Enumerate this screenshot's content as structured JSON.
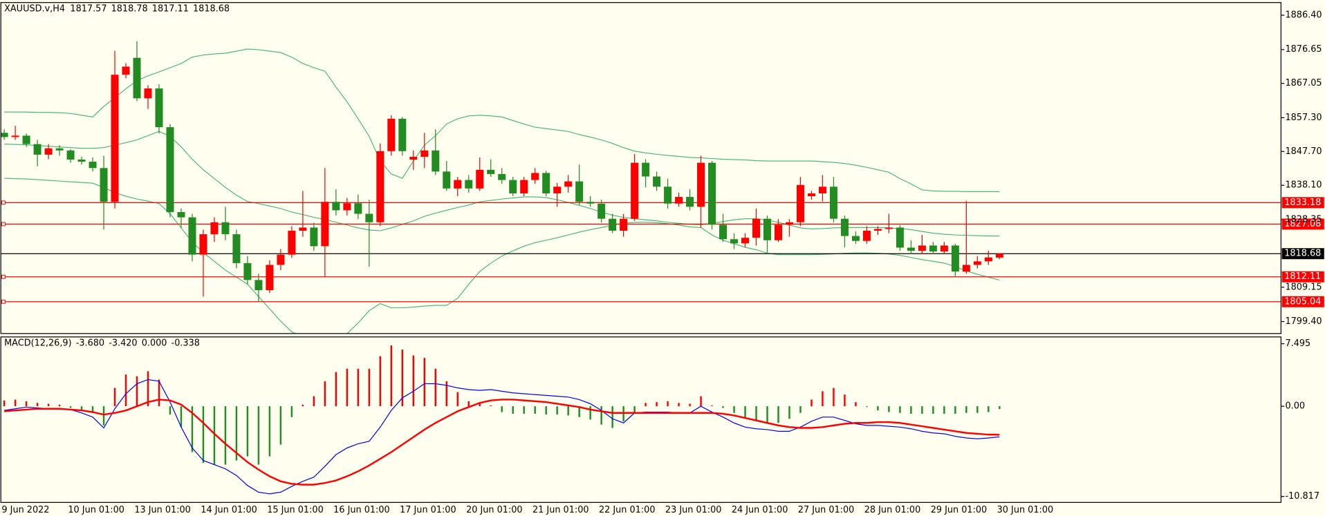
{
  "chart_data": [
    {
      "type": "candlestick",
      "title": "XAUUSD.v,H4",
      "categories": [
        "9 Jun 2022",
        null,
        null,
        null,
        null,
        null,
        "10 Jun 01:00",
        null,
        null,
        null,
        null,
        null,
        "13 Jun 01:00",
        null,
        null,
        null,
        null,
        null,
        "14 Jun 01:00",
        null,
        null,
        null,
        null,
        null,
        "15 Jun 01:00",
        null,
        null,
        null,
        null,
        null,
        "16 Jun 01:00",
        null,
        null,
        null,
        null,
        null,
        "17 Jun 01:00",
        null,
        null,
        null,
        null,
        null,
        "20 Jun 01:00",
        null,
        null,
        null,
        null,
        null,
        "21 Jun 01:00",
        null,
        null,
        null,
        null,
        null,
        "22 Jun 01:00",
        null,
        null,
        null,
        null,
        null,
        "23 Jun 01:00",
        null,
        null,
        null,
        null,
        null,
        "24 Jun 01:00",
        null,
        null,
        null,
        null,
        null,
        "27 Jun 01:00",
        null,
        null,
        null,
        null,
        null,
        "28 Jun 01:00",
        null,
        null,
        null,
        null,
        null,
        "29 Jun 01:00",
        null,
        null,
        null,
        null,
        null,
        "30 Jun 01:00"
      ],
      "open": [
        1853.0,
        1851.8,
        1852.2,
        1849.8,
        1846.8,
        1848.6,
        1848.0,
        1845.4,
        1844.8,
        1843.0,
        1833.4,
        1869.5,
        1874.3,
        1862.8,
        1865.6,
        1854.6,
        1830.5,
        1829.0,
        1818.4,
        1824.2,
        1827.6,
        1824.2,
        1816.0,
        1811.2,
        1808.3,
        1815.5,
        1818.4,
        1825.2,
        1826.1,
        1820.8,
        1833.4,
        1831.0,
        1833.0,
        1830.0,
        1827.6,
        1847.8,
        1857.0,
        1845.4,
        1846.2,
        1848.0,
        1842.0,
        1837.2,
        1839.6,
        1837.2,
        1842.5,
        1841.3,
        1839.6,
        1835.8,
        1839.6,
        1841.6,
        1835.8,
        1837.7,
        1839.2,
        1833.4,
        1832.9,
        1828.6,
        1825.2,
        1828.6,
        1844.5,
        1840.6,
        1837.7,
        1832.9,
        1834.8,
        1832.0,
        1844.5,
        1826.9,
        1822.8,
        1821.6,
        1823.2,
        1828.6,
        1822.5,
        1826.9,
        1827.6,
        1835.0,
        1835.8,
        1837.7,
        1828.6,
        1823.7,
        1822.3,
        1825.2,
        1825.7,
        1826.1,
        1820.4,
        1819.5,
        1821.0,
        1819.3,
        1821.0,
        1813.6,
        1815.5,
        1816.5,
        1817.57
      ],
      "high": [
        1854.0,
        1855.0,
        1852.8,
        1851.0,
        1849.8,
        1849.5,
        1848.4,
        1846.2,
        1846.0,
        1846.5,
        1876.3,
        1872.8,
        1879.0,
        1866.5,
        1866.8,
        1855.5,
        1831.5,
        1830.0,
        1825.5,
        1829.0,
        1832.0,
        1825.5,
        1818.0,
        1813.0,
        1816.8,
        1820.0,
        1826.5,
        1836.5,
        1827.5,
        1843.0,
        1837.0,
        1834.5,
        1835.5,
        1834.0,
        1850.0,
        1858.0,
        1857.5,
        1848.0,
        1853.0,
        1854.0,
        1845.0,
        1840.5,
        1841.0,
        1846.0,
        1845.5,
        1843.0,
        1840.5,
        1840.5,
        1843.0,
        1842.2,
        1838.8,
        1841.0,
        1844.0,
        1835.0,
        1834.0,
        1830.0,
        1830.0,
        1847.0,
        1845.5,
        1842.0,
        1840.0,
        1836.0,
        1837.0,
        1846.5,
        1845.0,
        1830.0,
        1824.5,
        1824.5,
        1831.5,
        1829.5,
        1828.5,
        1828.5,
        1840.5,
        1836.5,
        1841.0,
        1840.5,
        1829.5,
        1825.0,
        1826.5,
        1826.5,
        1830.0,
        1826.8,
        1822.5,
        1824.0,
        1822.0,
        1822.0,
        1821.5,
        1833.7,
        1818.0,
        1819.5,
        1818.78
      ],
      "low": [
        1851.0,
        1851.0,
        1849.0,
        1843.5,
        1845.5,
        1846.5,
        1844.5,
        1844.0,
        1842.0,
        1825.5,
        1831.5,
        1868.5,
        1862.0,
        1859.8,
        1852.8,
        1829.0,
        1826.0,
        1816.5,
        1806.5,
        1822.0,
        1822.5,
        1814.5,
        1810.0,
        1805.0,
        1807.5,
        1814.0,
        1817.5,
        1823.5,
        1819.5,
        1812.0,
        1829.5,
        1829.5,
        1828.5,
        1815.0,
        1826.5,
        1846.5,
        1846.5,
        1842.5,
        1843.0,
        1841.0,
        1836.5,
        1835.0,
        1836.0,
        1836.5,
        1840.5,
        1838.5,
        1835.0,
        1835.0,
        1838.5,
        1835.0,
        1832.0,
        1836.0,
        1832.5,
        1832.0,
        1827.5,
        1824.5,
        1823.5,
        1828.0,
        1837.5,
        1836.5,
        1831.5,
        1832.0,
        1831.0,
        1826.0,
        1825.5,
        1822.0,
        1820.0,
        1820.5,
        1821.0,
        1818.5,
        1822.0,
        1823.5,
        1826.5,
        1834.0,
        1833.5,
        1827.5,
        1820.5,
        1821.5,
        1821.5,
        1824.0,
        1824.5,
        1819.5,
        1818.5,
        1818.5,
        1818.5,
        1818.5,
        1812.0,
        1813.0,
        1814.5,
        1815.5,
        1817.11
      ],
      "close": [
        1851.8,
        1852.2,
        1849.8,
        1846.8,
        1848.6,
        1848.0,
        1845.4,
        1844.8,
        1843.0,
        1833.4,
        1869.5,
        1871.8,
        1862.8,
        1865.6,
        1854.6,
        1830.5,
        1829.0,
        1818.4,
        1824.2,
        1827.6,
        1824.2,
        1816.0,
        1811.2,
        1808.3,
        1815.5,
        1818.4,
        1825.2,
        1826.1,
        1820.8,
        1833.4,
        1831.0,
        1833.0,
        1830.0,
        1827.6,
        1847.8,
        1857.0,
        1847.8,
        1846.2,
        1848.0,
        1842.0,
        1837.2,
        1839.6,
        1837.2,
        1842.5,
        1841.3,
        1839.6,
        1835.8,
        1839.6,
        1841.6,
        1835.8,
        1837.7,
        1839.2,
        1833.4,
        1832.9,
        1828.6,
        1825.2,
        1828.6,
        1844.5,
        1840.6,
        1837.7,
        1832.9,
        1834.8,
        1832.0,
        1844.5,
        1826.9,
        1822.8,
        1821.6,
        1823.2,
        1828.6,
        1822.5,
        1826.9,
        1827.6,
        1838.2,
        1835.8,
        1837.7,
        1828.6,
        1823.7,
        1822.3,
        1825.2,
        1825.7,
        1826.1,
        1820.4,
        1819.5,
        1821.0,
        1819.3,
        1821.0,
        1813.6,
        1815.5,
        1816.5,
        1817.6,
        1818.68
      ],
      "up_color": "#ff0000",
      "down_color": "#228b22",
      "bands": {
        "color": "#3cb371",
        "upper": [
          1858.9,
          1858.9,
          1858.9,
          1858.8,
          1858.8,
          1858.7,
          1858.5,
          1858.0,
          1857.5,
          1860.5,
          1863.0,
          1865.5,
          1867.8,
          1869.2,
          1870.3,
          1871.5,
          1872.7,
          1874.5,
          1875.1,
          1875.4,
          1875.6,
          1876.2,
          1876.8,
          1876.6,
          1876.2,
          1875.8,
          1874.5,
          1872.7,
          1871.5,
          1870.5,
          1866.0,
          1861.8,
          1857.0,
          1852.0,
          1845.0,
          1841.3,
          1840.1,
          1845.0,
          1849.5,
          1852.2,
          1855.5,
          1857.0,
          1857.8,
          1858.0,
          1857.8,
          1857.5,
          1856.5,
          1855.5,
          1854.6,
          1854.2,
          1853.8,
          1853.4,
          1852.5,
          1851.8,
          1851.0,
          1850.0,
          1848.8,
          1847.8,
          1847.3,
          1846.9,
          1846.6,
          1846.3,
          1846.0,
          1845.9,
          1845.7,
          1845.5,
          1845.4,
          1845.3,
          1845.1,
          1845.0,
          1845.0,
          1845.0,
          1845.0,
          1845.0,
          1844.8,
          1844.6,
          1844.3,
          1843.8,
          1843.2,
          1842.5,
          1841.8,
          1840.0,
          1838.5,
          1836.8,
          1836.5,
          1836.4,
          1836.4,
          1836.3,
          1836.3,
          1836.3,
          1836.3
        ],
        "middle": [
          1849.8,
          1849.7,
          1849.6,
          1849.4,
          1849.2,
          1849.0,
          1848.8,
          1848.6,
          1848.6,
          1848.8,
          1849.5,
          1850.2,
          1851.0,
          1852.2,
          1853.4,
          1852.0,
          1849.0,
          1845.5,
          1842.5,
          1840.0,
          1837.5,
          1835.3,
          1833.5,
          1832.9,
          1832.2,
          1831.5,
          1830.5,
          1829.8,
          1829.0,
          1828.4,
          1827.6,
          1826.8,
          1826.0,
          1825.4,
          1825.2,
          1826.0,
          1827.0,
          1828.0,
          1829.3,
          1830.2,
          1831.0,
          1831.8,
          1832.5,
          1833.4,
          1833.8,
          1834.2,
          1834.5,
          1834.8,
          1834.8,
          1834.6,
          1834.0,
          1833.2,
          1832.4,
          1831.5,
          1830.5,
          1829.6,
          1829.0,
          1828.6,
          1828.3,
          1828.0,
          1827.6,
          1827.3,
          1827.0,
          1826.9,
          1827.3,
          1827.8,
          1828.3,
          1828.6,
          1828.6,
          1828.2,
          1827.6,
          1826.8,
          1826.0,
          1825.7,
          1825.8,
          1826.0,
          1826.1,
          1826.1,
          1826.1,
          1826.1,
          1826.0,
          1825.8,
          1825.5,
          1825.0,
          1824.5,
          1824.2,
          1824.0,
          1823.9,
          1823.8,
          1823.7,
          1823.7
        ],
        "lower": [
          1840.1,
          1840.0,
          1839.9,
          1839.7,
          1839.5,
          1839.3,
          1839.1,
          1838.9,
          1838.7,
          1837.5,
          1836.0,
          1835.0,
          1834.2,
          1833.6,
          1832.9,
          1830.0,
          1826.0,
          1822.0,
          1819.0,
          1816.5,
          1814.0,
          1812.0,
          1810.0,
          1806.5,
          1803.0,
          1799.5,
          1796.5,
          1795.0,
          1794.3,
          1794.0,
          1794.3,
          1796.0,
          1799.0,
          1802.5,
          1804.5,
          1803.3,
          1803.3,
          1803.5,
          1803.8,
          1804.0,
          1804.0,
          1806.0,
          1810.0,
          1813.6,
          1816.0,
          1818.0,
          1819.5,
          1820.8,
          1821.8,
          1822.5,
          1823.2,
          1824.0,
          1824.8,
          1825.5,
          1826.1,
          1826.8,
          1827.3,
          1827.6,
          1827.6,
          1827.5,
          1827.2,
          1826.8,
          1826.3,
          1826.1,
          1824.0,
          1822.5,
          1821.5,
          1820.5,
          1819.8,
          1818.8,
          1818.4,
          1818.4,
          1818.4,
          1818.4,
          1818.5,
          1818.6,
          1818.8,
          1818.9,
          1818.9,
          1818.8,
          1818.6,
          1818.2,
          1817.6,
          1817.0,
          1816.5,
          1816.0,
          1815.0,
          1813.8,
          1812.8,
          1812.0,
          1811.2
        ]
      },
      "levels": [
        1833.18,
        1827.08,
        1812.11,
        1805.04
      ],
      "level_color": "#ff0000",
      "price_line_color": "#000000",
      "ylim": [
        1796.0,
        1890.0
      ],
      "yticks": [
        {
          "value": 1886.4,
          "label": "1886.40"
        },
        1876.65,
        1867.05,
        {
          "value": 1857.3,
          "label": "1857.30"
        },
        {
          "value": 1847.7,
          "label": "1847.70"
        },
        {
          "value": 1838.1,
          "label": "1838.10"
        },
        1828.35,
        1809.15,
        {
          "value": 1799.4,
          "label": "1799.40"
        }
      ]
    },
    {
      "type": "macd",
      "title": "MACD(12,26,9)",
      "legend_values": [
        "-3.680",
        "-3.420",
        "0.000",
        "-0.338"
      ],
      "up_color": "#ff0000",
      "down_color": "#228b22",
      "main_color": "#0000ff",
      "signal_color": "#ff0000",
      "histogram": [
        0.7,
        0.8,
        0.6,
        0.4,
        0.3,
        0.2,
        -0.2,
        -0.5,
        -0.8,
        -2.3,
        2.2,
        3.8,
        3.6,
        4.2,
        3.2,
        -1.0,
        -2.5,
        -5.5,
        -6.8,
        -7.0,
        -7.0,
        -6.5,
        -6.0,
        -7.0,
        -6.0,
        -4.6,
        -1.3,
        0.2,
        1.2,
        3.0,
        4.1,
        4.5,
        4.5,
        4.5,
        6.0,
        7.3,
        6.8,
        6.1,
        5.8,
        4.5,
        3.0,
        1.7,
        0.6,
        0.3,
        0.1,
        -0.7,
        -0.9,
        -0.9,
        -0.9,
        -1.0,
        -1.0,
        -1.1,
        -1.3,
        -1.6,
        -2.2,
        -2.6,
        -1.8,
        -0.8,
        0.4,
        0.5,
        0.6,
        0.4,
        0.3,
        1.2,
        0.1,
        -0.2,
        -0.8,
        -1.5,
        -1.8,
        -2.0,
        -2.0,
        -1.5,
        -0.8,
        0.8,
        1.8,
        2.2,
        1.4,
        0.5,
        -0.1,
        -0.5,
        -0.7,
        -0.8,
        -0.9,
        -0.9,
        -0.9,
        -0.9,
        -0.9,
        -0.8,
        -0.8,
        -0.7,
        -0.338
      ],
      "main": [
        -0.5,
        -0.3,
        -0.1,
        -0.2,
        -0.3,
        -0.3,
        -0.4,
        -0.8,
        -1.3,
        -2.6,
        -0.3,
        1.5,
        2.7,
        3.2,
        3.0,
        0.5,
        -2.5,
        -5.0,
        -6.5,
        -7.0,
        -7.5,
        -8.3,
        -9.5,
        -10.3,
        -10.5,
        -10.3,
        -9.6,
        -9.0,
        -8.5,
        -7.2,
        -5.8,
        -5.0,
        -4.5,
        -4.2,
        -2.5,
        -0.5,
        1.0,
        1.8,
        2.7,
        2.7,
        2.5,
        2.2,
        2.0,
        1.9,
        2.0,
        1.8,
        1.6,
        1.5,
        1.4,
        1.3,
        1.2,
        1.1,
        0.8,
        0.3,
        -0.5,
        -1.5,
        -2.0,
        -0.8,
        -0.7,
        -0.7,
        -0.7,
        -0.8,
        -0.8,
        0.0,
        -0.7,
        -1.3,
        -2.0,
        -2.5,
        -2.7,
        -2.8,
        -3.0,
        -3.0,
        -2.5,
        -1.8,
        -1.3,
        -1.3,
        -1.7,
        -2.1,
        -2.3,
        -2.3,
        -2.4,
        -2.5,
        -2.7,
        -3.0,
        -3.2,
        -3.3,
        -3.6,
        -3.8,
        -3.9,
        -3.8,
        -3.68
      ],
      "signal": [
        -0.6,
        -0.5,
        -0.4,
        -0.3,
        -0.3,
        -0.3,
        -0.4,
        -0.5,
        -0.7,
        -1.0,
        -0.8,
        -0.5,
        0.0,
        0.5,
        0.8,
        0.7,
        0.2,
        -0.8,
        -2.0,
        -3.3,
        -4.5,
        -5.6,
        -6.7,
        -7.6,
        -8.4,
        -9.0,
        -9.3,
        -9.4,
        -9.4,
        -9.2,
        -8.9,
        -8.4,
        -7.8,
        -7.1,
        -6.3,
        -5.5,
        -4.6,
        -3.7,
        -2.8,
        -2.0,
        -1.3,
        -0.6,
        -0.1,
        0.4,
        0.7,
        0.8,
        0.8,
        0.7,
        0.6,
        0.5,
        0.3,
        0.1,
        -0.1,
        -0.4,
        -0.6,
        -0.8,
        -0.8,
        -0.8,
        -0.8,
        -0.8,
        -0.8,
        -0.8,
        -0.8,
        -0.8,
        -0.8,
        -0.9,
        -1.1,
        -1.4,
        -1.7,
        -2.0,
        -2.3,
        -2.5,
        -2.6,
        -2.6,
        -2.5,
        -2.3,
        -2.1,
        -2.0,
        -2.0,
        -1.9,
        -1.9,
        -2.0,
        -2.2,
        -2.4,
        -2.6,
        -2.8,
        -3.0,
        -3.2,
        -3.3,
        -3.4,
        -3.42
      ],
      "ylim": [
        -11.53,
        8.31
      ],
      "yticks": [
        7.495,
        {
          "value": 0,
          "label": "0.00"
        },
        -10.817
      ]
    }
  ]
}
